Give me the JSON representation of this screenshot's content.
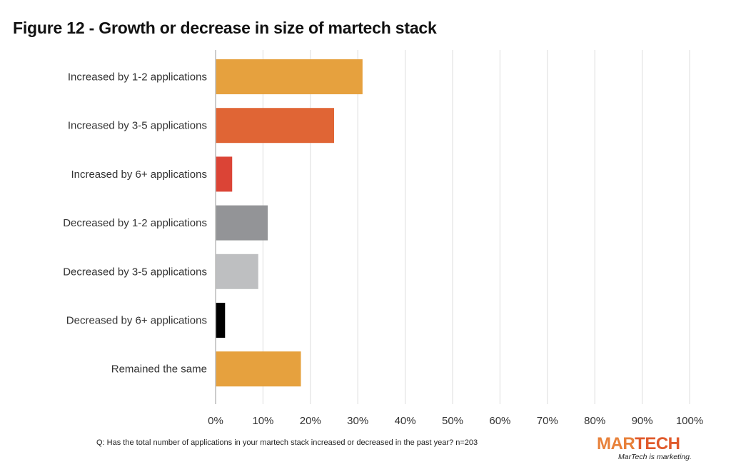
{
  "chart_data": {
    "type": "bar",
    "orientation": "horizontal",
    "title": "Figure 12 - Growth or decrease in size of martech stack",
    "categories": [
      "Increased by 1-2 applications",
      "Increased by 3-5 applications",
      "Increased by 6+ applications",
      "Decreased by 1-2 applications",
      "Decreased by 3-5 applications",
      "Decreased by 6+ applications",
      "Remained the same"
    ],
    "values": [
      31,
      25,
      3.5,
      11,
      9,
      2,
      18
    ],
    "colors": [
      "#e6a13e",
      "#e06535",
      "#db4436",
      "#939497",
      "#bebfc1",
      "#000000",
      "#e6a13e"
    ],
    "xlim": [
      0,
      100
    ],
    "xticks": [
      "0%",
      "10%",
      "20%",
      "30%",
      "40%",
      "50%",
      "60%",
      "70%",
      "80%",
      "90%",
      "100%"
    ],
    "grid": true,
    "xlabel": "",
    "ylabel": ""
  },
  "footnote": "Q: Has the total number of applications in your martech stack increased or decreased in the past year? n=203",
  "logo": {
    "part1": "MAR",
    "part2": "TECH",
    "tagline": "MarTech is marketing."
  }
}
